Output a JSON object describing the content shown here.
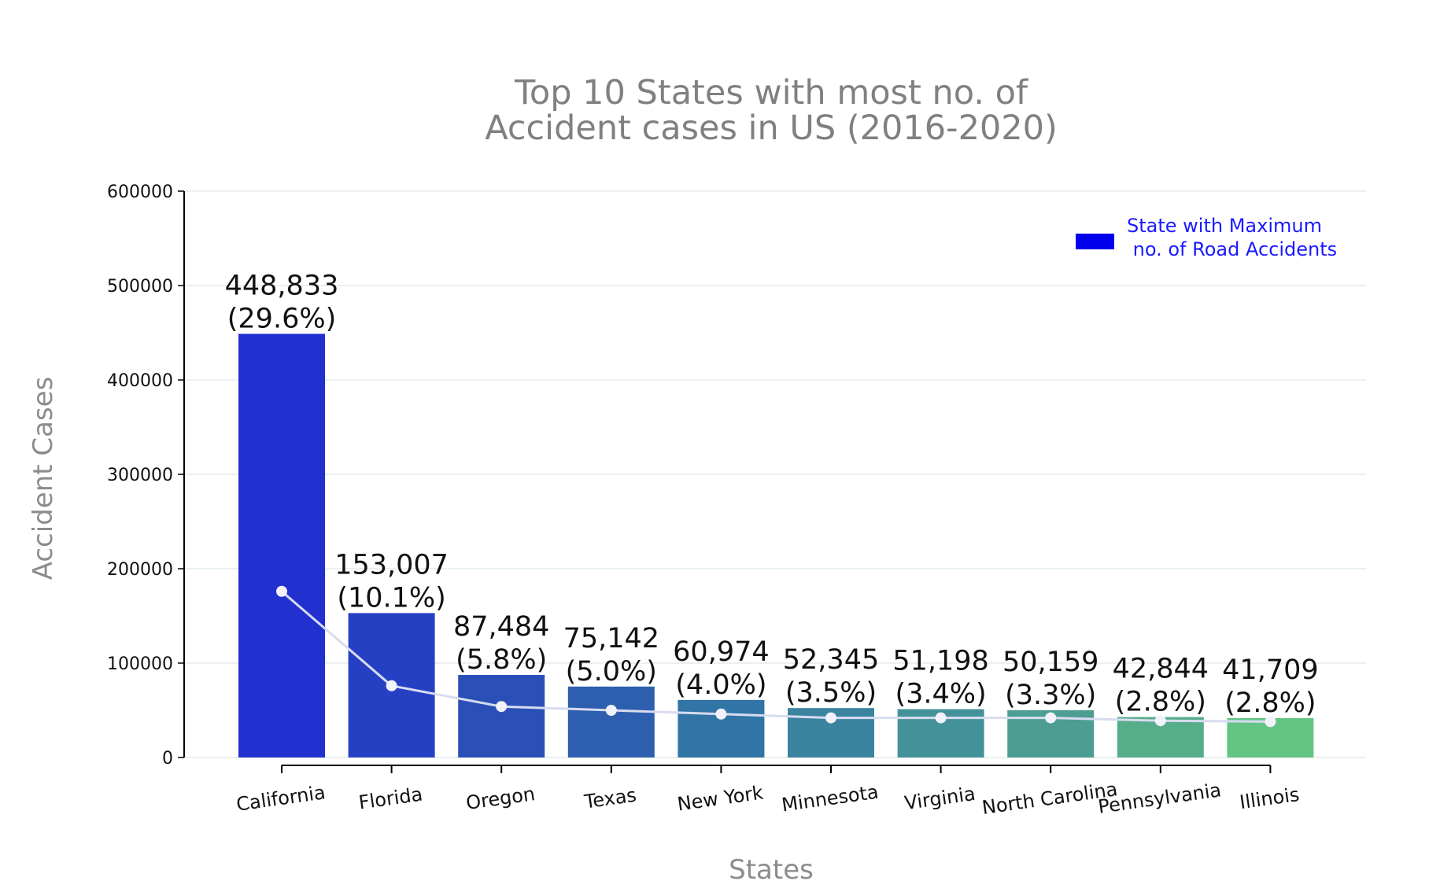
{
  "chart_data": {
    "type": "bar",
    "title_lines": [
      "Top 10 States with most no. of",
      "Accident cases in US (2016-2020)"
    ],
    "xlabel": "States",
    "ylabel": "Accident Cases",
    "ylim": [
      0,
      600000
    ],
    "yticks": [
      "0",
      "100000",
      "200000",
      "300000",
      "400000",
      "500000",
      "600000"
    ],
    "categories": [
      "California",
      "Florida",
      "Oregon",
      "Texas",
      "New York",
      "Minnesota",
      "Virginia",
      "North Carolina",
      "Pennsylvania",
      "Illinois"
    ],
    "values": [
      448833,
      153007,
      87484,
      75142,
      60974,
      52345,
      51198,
      50159,
      42844,
      41709
    ],
    "value_labels": [
      "448,833",
      "153,007",
      "87,484",
      "75,142",
      "60,974",
      "52,345",
      "51,198",
      "50,159",
      "42,844",
      "41,709"
    ],
    "percent_labels": [
      "(29.6%)",
      "(10.1%)",
      "(5.8%)",
      "(5.0%)",
      "(4.0%)",
      "(3.5%)",
      "(3.4%)",
      "(3.3%)",
      "(2.8%)",
      "(2.8%)"
    ],
    "line_values": [
      176000,
      76000,
      54000,
      50000,
      46000,
      42000,
      42000,
      42000,
      39000,
      38000
    ],
    "bar_colors": [
      "#2330d0",
      "#2640c4",
      "#2a50b8",
      "#2d5fae",
      "#3174a6",
      "#3a84a0",
      "#43929a",
      "#4c9e92",
      "#56ad8a",
      "#62c584"
    ],
    "line_color": "#d8dcf0",
    "grid": true,
    "legend": {
      "position": "top-right",
      "lines": [
        "State with Maximum",
        " no. of Road Accidents"
      ],
      "color": "#0000ff"
    }
  }
}
